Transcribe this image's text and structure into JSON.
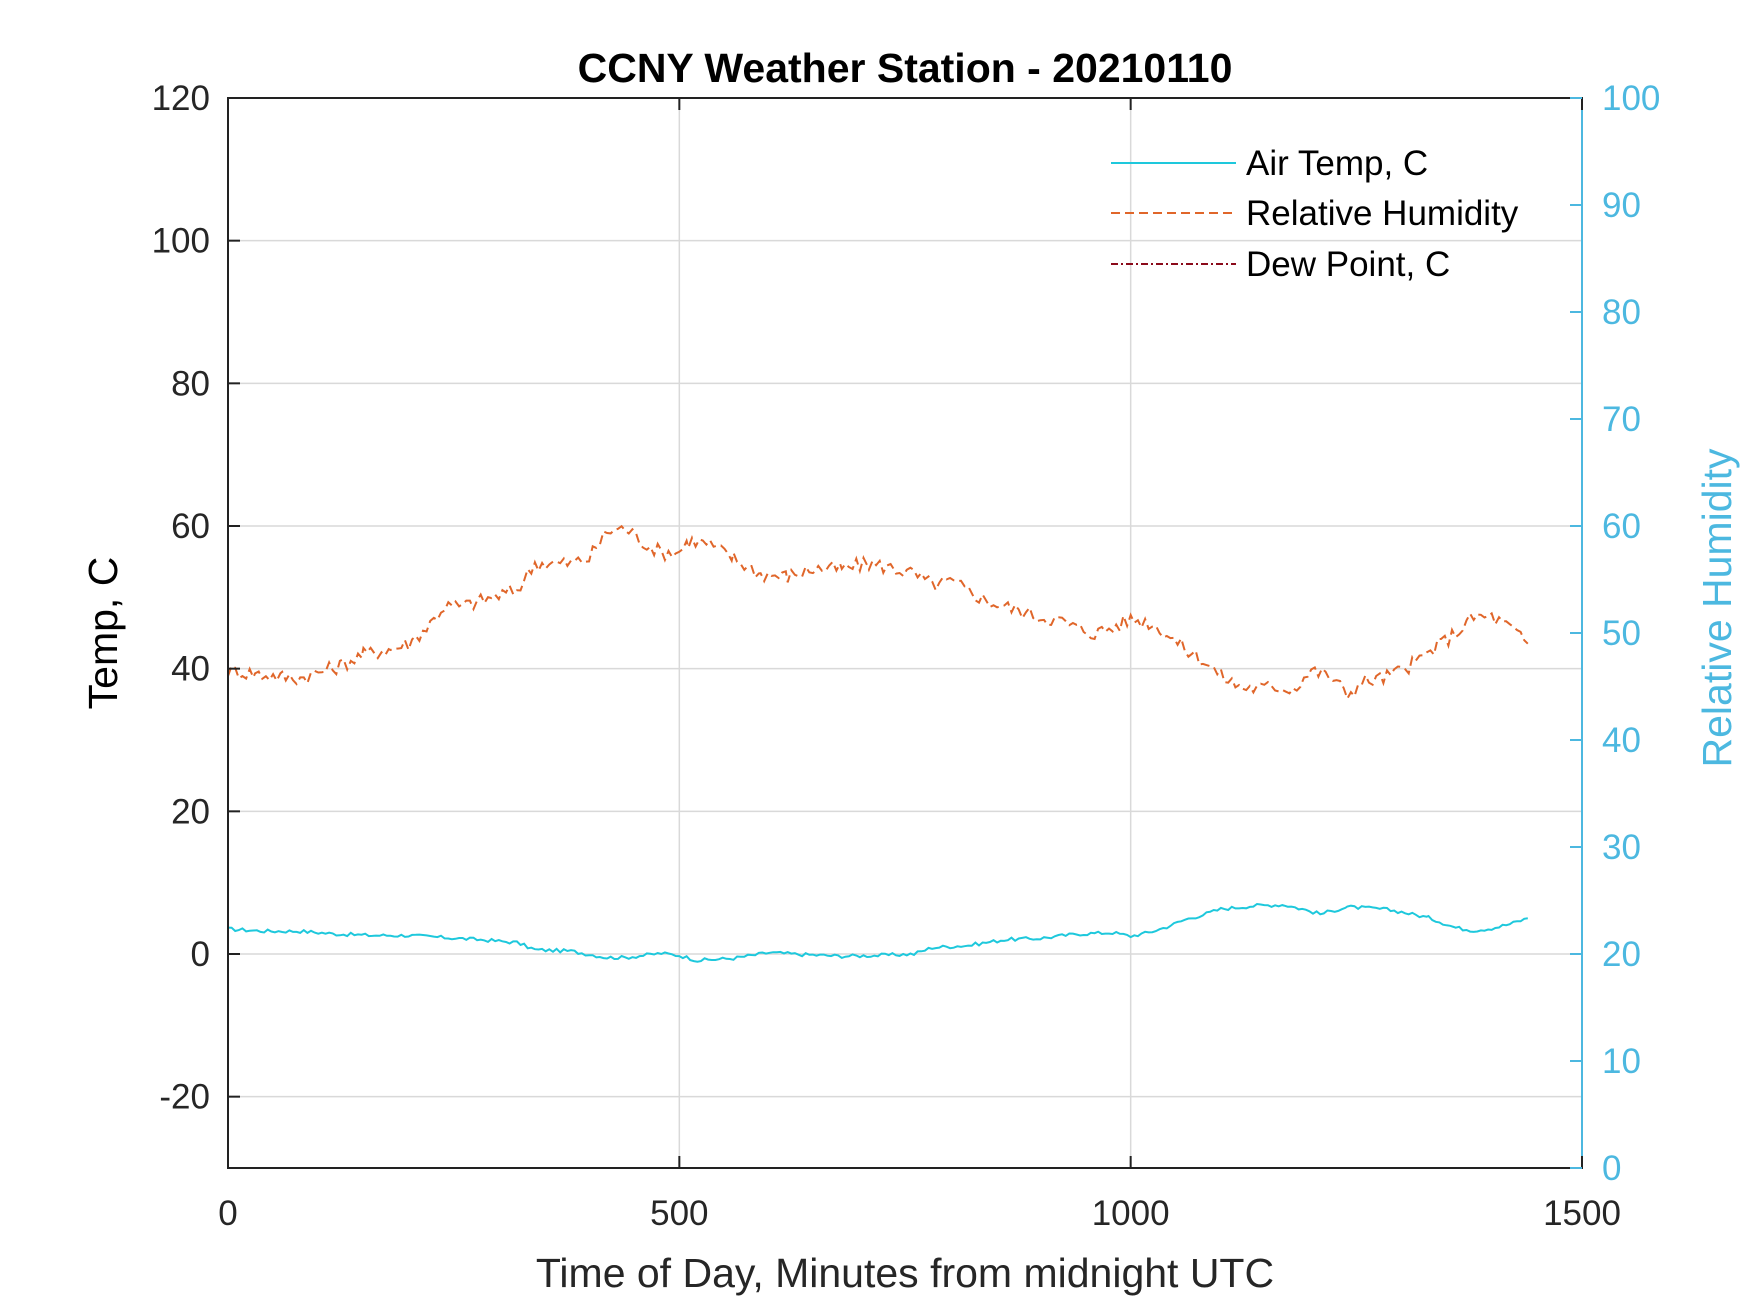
{
  "chart_data": {
    "type": "line",
    "title": "CCNY Weather Station - 20210110",
    "xlabel": "Time of Day, Minutes from midnight UTC",
    "ylabel_left": "Temp, C",
    "ylabel_right": "Relative Humidity",
    "xlim": [
      0,
      1500
    ],
    "ylim_left": [
      -30,
      120
    ],
    "ylim_right": [
      0,
      100
    ],
    "xticks": [
      0,
      500,
      1000,
      1500
    ],
    "yticks_left": [
      -20,
      0,
      20,
      40,
      60,
      80,
      100,
      120
    ],
    "yticks_right": [
      0,
      10,
      20,
      30,
      40,
      50,
      60,
      70,
      80,
      90,
      100
    ],
    "x_tick_labels": [
      "0",
      "500",
      "1000",
      "1500"
    ],
    "y_left_tick_labels": [
      "-20",
      "0",
      "20",
      "40",
      "60",
      "80",
      "100",
      "120"
    ],
    "y_right_tick_labels": [
      "0",
      "10",
      "20",
      "30",
      "40",
      "50",
      "60",
      "70",
      "80",
      "90",
      "100"
    ],
    "grid": true,
    "legend_position": "top-right",
    "colors": {
      "air_temp": "#1ec8dc",
      "relative_humidity": "#e0662a",
      "dew_point": "#8b0a1a",
      "right_axis": "#4cb8e0",
      "grid": "#d9d9d9",
      "axis": "#222222"
    },
    "series": [
      {
        "name": "Air Temp, C",
        "axis": "left",
        "style": "solid",
        "x": [
          0,
          40,
          80,
          120,
          160,
          200,
          240,
          280,
          320,
          340,
          380,
          420,
          440,
          480,
          500,
          520,
          560,
          600,
          640,
          680,
          720,
          760,
          780,
          820,
          860,
          900,
          940,
          980,
          1000,
          1020,
          1040,
          1060,
          1080,
          1100,
          1140,
          1170,
          1190,
          1210,
          1240,
          1280,
          1300,
          1330,
          1360,
          1380,
          1400,
          1420,
          1440
        ],
        "values": [
          3.5,
          3.2,
          3.2,
          2.8,
          2.6,
          2.6,
          2.3,
          2.0,
          1.6,
          0.6,
          0.4,
          -0.5,
          -0.5,
          0.1,
          -0.2,
          -0.9,
          -0.6,
          0.2,
          -0.1,
          -0.3,
          -0.2,
          0.0,
          0.9,
          1.2,
          2.0,
          2.2,
          2.8,
          3.0,
          2.5,
          3.0,
          3.8,
          4.8,
          5.5,
          6.3,
          6.8,
          6.9,
          6.3,
          5.6,
          6.6,
          6.3,
          5.9,
          5.1,
          3.7,
          3.3,
          3.6,
          4.2,
          5.0
        ]
      },
      {
        "name": "Relative Humidity",
        "axis": "right",
        "style": "dashed",
        "x": [
          0,
          30,
          60,
          80,
          100,
          120,
          150,
          180,
          200,
          220,
          240,
          260,
          280,
          300,
          320,
          340,
          360,
          380,
          400,
          420,
          440,
          460,
          480,
          500,
          510,
          530,
          560,
          590,
          620,
          650,
          680,
          710,
          740,
          760,
          780,
          800,
          820,
          840,
          860,
          880,
          900,
          920,
          940,
          960,
          980,
          1000,
          1020,
          1040,
          1060,
          1080,
          1100,
          1120,
          1140,
          1160,
          1180,
          1200,
          1220,
          1240,
          1260,
          1280,
          1300,
          1320,
          1340,
          1360,
          1380,
          1400,
          1420,
          1440
        ],
        "values": [
          46.5,
          46.2,
          45.9,
          45.8,
          46.3,
          46.8,
          48.0,
          48.5,
          49.0,
          50.5,
          52.5,
          52.5,
          53.0,
          53.5,
          54.0,
          56.5,
          56.5,
          56.5,
          57.0,
          59.5,
          59.8,
          58.5,
          57.5,
          57.6,
          58.6,
          58.4,
          57.0,
          55.5,
          55.3,
          56.0,
          56.0,
          56.5,
          56.0,
          55.5,
          54.5,
          54.8,
          54.0,
          53.0,
          52.5,
          52.0,
          51.5,
          51.2,
          50.5,
          50.0,
          50.5,
          51.3,
          51.0,
          50.0,
          48.5,
          47.5,
          46.0,
          45.0,
          44.8,
          45.0,
          44.8,
          46.5,
          46.0,
          44.3,
          45.5,
          45.8,
          46.5,
          47.5,
          48.8,
          50.0,
          51.5,
          51.5,
          50.5,
          49.0
        ]
      },
      {
        "name": "Dew Point, C",
        "axis": "left",
        "style": "dash-dot",
        "x": [],
        "values": []
      }
    ]
  }
}
